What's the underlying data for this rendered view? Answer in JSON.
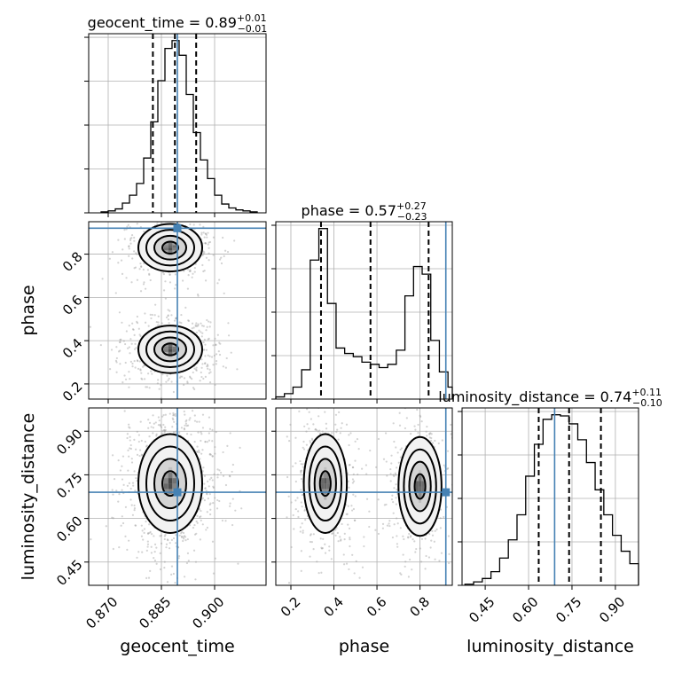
{
  "chart_data": {
    "type": "corner",
    "parameters": [
      "geocent_time",
      "phase",
      "luminosity_distance"
    ],
    "truth": {
      "geocent_time": 0.8895,
      "phase": 0.92,
      "luminosity_distance": 0.69
    },
    "titles": [
      {
        "param": "geocent_time",
        "prefix": "geocent_time = 0.89",
        "plus": "+0.01",
        "minus": "−0.01"
      },
      {
        "param": "phase",
        "prefix": "phase = 0.57",
        "plus": "+0.27",
        "minus": "−0.23"
      },
      {
        "param": "luminosity_distance",
        "prefix": "luminosity_distance = 0.74",
        "plus": "+0.11",
        "minus": "−0.10"
      }
    ],
    "axes": {
      "geocent_time": {
        "range": [
          0.8645,
          0.9145
        ],
        "ticks": [
          0.87,
          0.885,
          0.9
        ],
        "tick_labels": [
          "0.870",
          "0.885",
          "0.900"
        ],
        "label": "geocent_time"
      },
      "phase": {
        "range": [
          0.13,
          0.95
        ],
        "ticks": [
          0.2,
          0.4,
          0.6,
          0.8
        ],
        "tick_labels": [
          "0.2",
          "0.4",
          "0.6",
          "0.8"
        ],
        "label": "phase"
      },
      "luminosity_distance": {
        "range": [
          0.37,
          0.98
        ],
        "ticks": [
          0.45,
          0.6,
          0.75,
          0.9
        ],
        "tick_labels": [
          "0.45",
          "0.60",
          "0.75",
          "0.90"
        ],
        "label": "luminosity_distance"
      }
    },
    "histograms": {
      "geocent_time": {
        "quantiles": [
          0.8826,
          0.8888,
          0.8948
        ],
        "bin_edges": [
          0.868,
          0.87,
          0.872,
          0.874,
          0.876,
          0.878,
          0.88,
          0.882,
          0.884,
          0.886,
          0.888,
          0.89,
          0.892,
          0.894,
          0.896,
          0.898,
          0.9,
          0.902,
          0.904,
          0.906,
          0.908,
          0.91,
          0.912
        ],
        "counts": [
          1,
          2,
          4,
          10,
          18,
          30,
          56,
          93,
          135,
          168,
          176,
          161,
          121,
          82,
          54,
          35,
          18,
          9,
          5,
          3,
          2,
          1
        ]
      },
      "phase": {
        "quantiles": [
          0.34,
          0.57,
          0.84
        ],
        "bin_edges": [
          0.13,
          0.17,
          0.21,
          0.25,
          0.29,
          0.33,
          0.37,
          0.41,
          0.45,
          0.49,
          0.53,
          0.57,
          0.61,
          0.65,
          0.69,
          0.73,
          0.77,
          0.81,
          0.85,
          0.89,
          0.93,
          0.95
        ],
        "counts": [
          2,
          5,
          11,
          27,
          128,
          157,
          88,
          47,
          42,
          39,
          34,
          32,
          29,
          32,
          45,
          95,
          122,
          115,
          54,
          25,
          11
        ]
      },
      "luminosity_distance": {
        "quantiles": [
          0.635,
          0.74,
          0.85
        ],
        "bin_edges": [
          0.38,
          0.41,
          0.44,
          0.47,
          0.5,
          0.53,
          0.56,
          0.59,
          0.62,
          0.65,
          0.68,
          0.71,
          0.74,
          0.77,
          0.8,
          0.83,
          0.86,
          0.89,
          0.92,
          0.95,
          0.98
        ],
        "counts": [
          1,
          3,
          6,
          12,
          24,
          40,
          62,
          96,
          124,
          146,
          150,
          149,
          142,
          128,
          108,
          84,
          62,
          44,
          30,
          19
        ]
      }
    },
    "contour_levels": [
      "0.5-sigma",
      "1-sigma",
      "1.5-sigma",
      "2-sigma"
    ]
  }
}
